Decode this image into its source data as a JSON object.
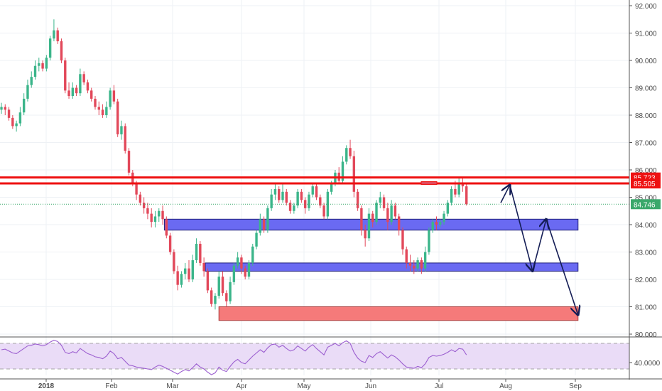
{
  "colors": {
    "up": "#3bb58a",
    "down": "#e2485a",
    "grid": "#eef1f5",
    "resistance": "#ee1111",
    "zone_blue": "#6a6af2",
    "zone_red": "#f57a7a",
    "arrow": "#141d55",
    "rsi_band": "#eadcf7",
    "rsi_line": "#9c5fd0",
    "price_line": "#3aa86b"
  },
  "chart_data": [
    {
      "type": "candlestick",
      "title": "",
      "xlabel": "",
      "ylabel": "",
      "ylim": [
        80.0,
        92.0
      ],
      "x_ticks": [
        "2018",
        "Feb",
        "Mar",
        "Apr",
        "May",
        "Jun",
        "Jul",
        "Aug",
        "Sep"
      ],
      "y_ticks": [
        "92.000",
        "91.000",
        "90.000",
        "89.000",
        "88.000",
        "87.000",
        "86.000",
        "85.000",
        "84.000",
        "83.000",
        "82.000",
        "81.000",
        "80.000"
      ],
      "grid": true,
      "last_price": "84.746",
      "price_labels": [
        {
          "text": "85.723",
          "value": 85.723,
          "kind": "resistance"
        },
        {
          "text": "85.505",
          "value": 85.505,
          "kind": "resistance"
        },
        {
          "text": "84.746",
          "value": 84.746,
          "kind": "last"
        }
      ],
      "zones": [
        {
          "kind": "support",
          "from": 83.8,
          "to": 84.2,
          "start": "2018-02-22",
          "end": "2018-08-23"
        },
        {
          "kind": "support",
          "from": 82.3,
          "to": 82.6,
          "start": "2018-03-12",
          "end": "2018-08-23"
        },
        {
          "kind": "target",
          "from": 80.5,
          "to": 81.0,
          "start": "2018-03-18",
          "end": "2018-08-23"
        }
      ],
      "forecast_path": [
        {
          "date": "2018-07-20",
          "value": 84.8
        },
        {
          "date": "2018-07-24",
          "value": 85.45
        },
        {
          "date": "2018-08-03",
          "value": 82.3
        },
        {
          "date": "2018-08-09",
          "value": 84.2
        },
        {
          "date": "2018-08-23",
          "value": 80.7
        }
      ],
      "series": [
        {
          "values": [
            [
              88.2,
              88.45,
              88.05,
              88.3
            ],
            [
              88.3,
              88.4,
              88.0,
              88.2
            ],
            [
              88.2,
              88.3,
              87.8,
              87.9
            ],
            [
              87.9,
              88.0,
              87.5,
              87.6
            ],
            [
              87.6,
              87.8,
              87.4,
              87.7
            ],
            [
              87.7,
              88.3,
              87.6,
              88.1
            ],
            [
              88.1,
              88.8,
              88.0,
              88.6
            ],
            [
              88.6,
              89.3,
              88.5,
              89.1
            ],
            [
              89.1,
              89.6,
              89.0,
              89.4
            ],
            [
              89.4,
              90.0,
              89.3,
              89.8
            ],
            [
              89.8,
              90.1,
              89.6,
              89.9
            ],
            [
              89.9,
              90.0,
              89.6,
              89.7
            ],
            [
              89.7,
              90.2,
              89.6,
              90.1
            ],
            [
              90.1,
              90.9,
              90.0,
              90.8
            ],
            [
              90.8,
              91.5,
              90.7,
              91.1
            ],
            [
              91.1,
              91.2,
              90.6,
              90.7
            ],
            [
              90.7,
              90.8,
              89.9,
              90.0
            ],
            [
              90.0,
              90.1,
              88.8,
              88.9
            ],
            [
              88.9,
              89.2,
              88.6,
              88.7
            ],
            [
              88.7,
              89.2,
              88.6,
              89.0
            ],
            [
              89.0,
              89.1,
              88.7,
              88.8
            ],
            [
              88.8,
              89.7,
              88.7,
              89.5
            ],
            [
              89.5,
              89.6,
              89.1,
              89.2
            ],
            [
              89.2,
              89.3,
              88.8,
              88.9
            ],
            [
              88.9,
              89.0,
              88.5,
              88.6
            ],
            [
              88.6,
              88.7,
              88.2,
              88.3
            ],
            [
              88.3,
              88.5,
              88.0,
              88.2
            ],
            [
              88.2,
              88.4,
              87.9,
              88.0
            ],
            [
              88.0,
              88.5,
              87.9,
              88.3
            ],
            [
              88.3,
              89.0,
              88.2,
              88.9
            ],
            [
              88.9,
              89.1,
              88.4,
              88.5
            ],
            [
              88.5,
              88.6,
              87.2,
              87.3
            ],
            [
              87.3,
              87.8,
              87.1,
              87.6
            ],
            [
              87.6,
              87.7,
              86.6,
              86.7
            ],
            [
              86.7,
              86.8,
              85.8,
              85.9
            ],
            [
              85.9,
              86.0,
              85.4,
              85.5
            ],
            [
              85.5,
              85.6,
              84.9,
              85.1
            ],
            [
              85.1,
              85.2,
              84.7,
              84.8
            ],
            [
              84.8,
              85.0,
              84.4,
              84.6
            ],
            [
              84.6,
              84.8,
              84.2,
              84.4
            ],
            [
              84.4,
              84.6,
              83.9,
              84.1
            ],
            [
              84.1,
              84.5,
              83.9,
              84.3
            ],
            [
              84.3,
              84.6,
              84.1,
              84.5
            ],
            [
              84.5,
              84.7,
              84.0,
              84.2
            ],
            [
              84.2,
              84.3,
              83.5,
              83.6
            ],
            [
              83.6,
              83.7,
              82.9,
              83.0
            ],
            [
              83.0,
              83.1,
              82.2,
              82.3
            ],
            [
              82.3,
              82.5,
              81.6,
              81.8
            ],
            [
              81.8,
              82.3,
              81.7,
              82.2
            ],
            [
              82.2,
              82.6,
              82.0,
              82.4
            ],
            [
              82.4,
              82.7,
              81.9,
              82.0
            ],
            [
              82.0,
              82.9,
              81.9,
              82.7
            ],
            [
              82.7,
              83.5,
              82.6,
              83.3
            ],
            [
              83.3,
              83.4,
              82.5,
              82.6
            ],
            [
              82.6,
              82.8,
              82.1,
              82.3
            ],
            [
              82.3,
              82.4,
              81.5,
              81.6
            ],
            [
              81.6,
              81.7,
              81.0,
              81.1
            ],
            [
              81.1,
              81.5,
              80.9,
              81.4
            ],
            [
              81.4,
              82.3,
              81.3,
              82.1
            ],
            [
              82.1,
              82.3,
              81.4,
              81.5
            ],
            [
              81.5,
              81.6,
              81.0,
              81.2
            ],
            [
              81.2,
              82.1,
              81.1,
              81.9
            ],
            [
              81.9,
              82.6,
              81.8,
              82.5
            ],
            [
              82.5,
              83.0,
              82.4,
              82.8
            ],
            [
              82.8,
              82.9,
              82.2,
              82.4
            ],
            [
              82.4,
              82.5,
              82.0,
              82.1
            ],
            [
              82.1,
              82.7,
              82.0,
              82.6
            ],
            [
              82.6,
              83.3,
              82.5,
              83.2
            ],
            [
              83.2,
              83.8,
              83.1,
              83.7
            ],
            [
              83.7,
              84.4,
              83.6,
              84.2
            ],
            [
              84.2,
              84.3,
              83.7,
              83.8
            ],
            [
              83.8,
              84.7,
              83.7,
              84.6
            ],
            [
              84.6,
              85.3,
              84.5,
              85.1
            ],
            [
              85.1,
              85.5,
              84.9,
              85.3
            ],
            [
              85.3,
              85.4,
              84.8,
              84.9
            ],
            [
              84.9,
              85.5,
              84.8,
              85.2
            ],
            [
              85.2,
              85.3,
              84.7,
              84.8
            ],
            [
              84.8,
              84.9,
              84.4,
              84.5
            ],
            [
              84.5,
              84.8,
              84.4,
              84.7
            ],
            [
              84.7,
              85.3,
              84.6,
              85.2
            ],
            [
              85.2,
              85.3,
              84.8,
              84.9
            ],
            [
              84.9,
              85.0,
              84.4,
              84.6
            ],
            [
              84.6,
              85.2,
              84.5,
              85.1
            ],
            [
              85.1,
              85.5,
              85.0,
              85.4
            ],
            [
              85.4,
              85.5,
              84.9,
              85.0
            ],
            [
              85.0,
              85.1,
              84.6,
              84.7
            ],
            [
              84.7,
              84.8,
              84.2,
              84.3
            ],
            [
              84.3,
              85.3,
              84.2,
              85.2
            ],
            [
              85.2,
              85.6,
              85.1,
              85.5
            ],
            [
              85.5,
              86.0,
              85.4,
              85.9
            ],
            [
              85.9,
              86.1,
              85.5,
              85.6
            ],
            [
              85.6,
              86.5,
              85.5,
              86.3
            ],
            [
              86.3,
              86.9,
              86.2,
              86.8
            ],
            [
              86.8,
              87.1,
              86.4,
              86.5
            ],
            [
              86.5,
              86.7,
              85.0,
              85.2
            ],
            [
              85.2,
              85.3,
              84.5,
              84.6
            ],
            [
              84.6,
              84.7,
              83.6,
              83.8
            ],
            [
              83.8,
              84.0,
              83.2,
              83.5
            ],
            [
              83.5,
              84.6,
              83.4,
              84.4
            ],
            [
              84.4,
              84.5,
              83.9,
              84.1
            ],
            [
              84.1,
              84.9,
              84.0,
              84.8
            ],
            [
              84.8,
              85.2,
              84.6,
              85.0
            ],
            [
              85.0,
              85.1,
              84.5,
              84.6
            ],
            [
              84.6,
              84.8,
              83.8,
              84.1
            ],
            [
              84.1,
              84.9,
              84.0,
              84.7
            ],
            [
              84.7,
              84.8,
              84.2,
              84.3
            ],
            [
              84.3,
              84.4,
              83.6,
              83.8
            ],
            [
              83.8,
              83.9,
              82.9,
              83.1
            ],
            [
              83.1,
              83.2,
              82.4,
              82.6
            ],
            [
              82.6,
              82.9,
              82.3,
              82.5
            ],
            [
              82.5,
              82.7,
              82.2,
              82.4
            ],
            [
              82.4,
              82.8,
              82.3,
              82.7
            ],
            [
              82.7,
              82.8,
              82.2,
              82.4
            ],
            [
              82.4,
              83.2,
              82.3,
              83.0
            ],
            [
              83.0,
              83.9,
              82.9,
              83.8
            ],
            [
              83.8,
              84.2,
              83.7,
              84.1
            ],
            [
              84.1,
              84.3,
              83.8,
              84.0
            ],
            [
              84.0,
              84.2,
              83.9,
              84.1
            ],
            [
              84.1,
              84.5,
              84.0,
              84.4
            ],
            [
              84.4,
              84.9,
              84.3,
              84.8
            ],
            [
              84.8,
              85.4,
              84.7,
              85.3
            ],
            [
              85.3,
              85.6,
              85.0,
              85.1
            ],
            [
              85.1,
              85.7,
              85.0,
              85.5
            ],
            [
              85.5,
              85.75,
              85.2,
              85.4
            ],
            [
              85.4,
              85.5,
              84.7,
              84.746
            ]
          ]
        }
      ]
    },
    {
      "type": "line",
      "title": "",
      "xlabel": "",
      "ylabel": "",
      "ylim": [
        20,
        80
      ],
      "y_ticks": [
        "40.0000"
      ],
      "band": [
        30,
        70
      ],
      "series": [
        {
          "values": [
            60,
            61,
            58,
            55,
            54,
            58,
            62,
            66,
            67,
            69,
            68,
            66,
            68,
            72,
            75,
            73,
            67,
            56,
            54,
            57,
            55,
            62,
            58,
            54,
            52,
            49,
            48,
            46,
            50,
            58,
            54,
            46,
            48,
            42,
            36,
            35,
            33,
            32,
            31,
            30,
            29,
            33,
            36,
            34,
            31,
            28,
            25,
            22,
            26,
            29,
            27,
            32,
            38,
            33,
            30,
            25,
            21,
            24,
            33,
            28,
            26,
            34,
            41,
            45,
            40,
            38,
            44,
            50,
            55,
            60,
            56,
            63,
            68,
            69,
            64,
            67,
            62,
            58,
            60,
            66,
            62,
            58,
            64,
            68,
            62,
            57,
            52,
            64,
            67,
            70,
            66,
            71,
            74,
            70,
            56,
            47,
            42,
            40,
            51,
            48,
            54,
            57,
            52,
            47,
            52,
            49,
            44,
            38,
            33,
            32,
            31,
            34,
            32,
            38,
            48,
            51,
            50,
            51,
            53,
            56,
            60,
            57,
            62,
            61,
            52
          ]
        }
      ]
    }
  ]
}
